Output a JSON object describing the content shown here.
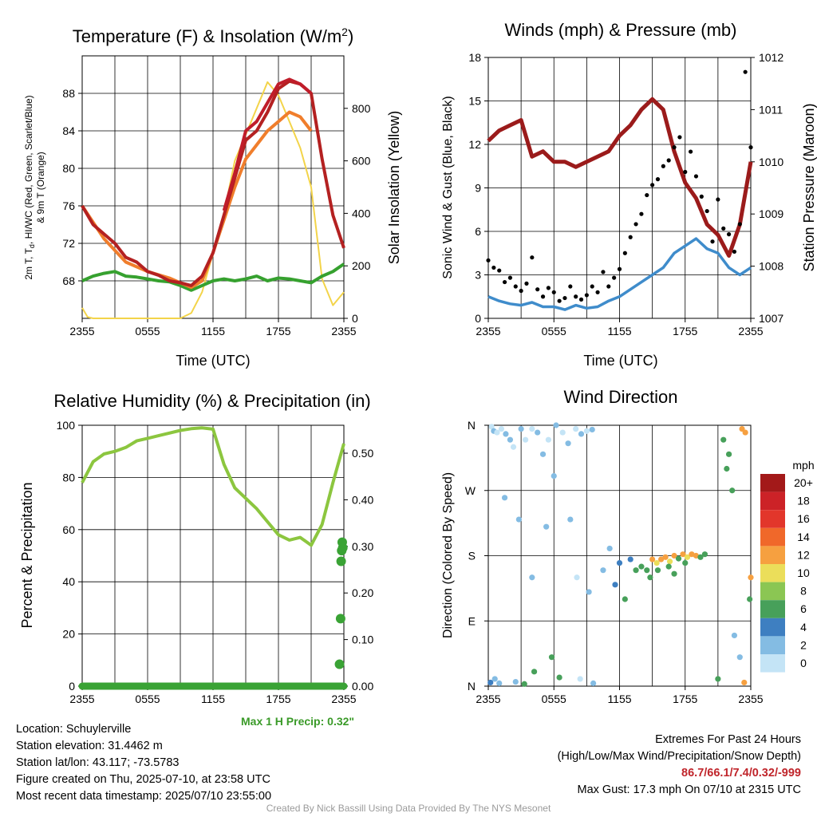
{
  "colors": {
    "temperature": "#b42121",
    "dewpoint": "#36a12f",
    "heat_index": "#c01d2a",
    "temp_9m": "#f07e2c",
    "insolation": "#f3d44a",
    "wind": "#3f8ccb",
    "gust": "#000000",
    "pressure": "#9b1b1b",
    "humidity": "#8cc63f",
    "precip": "#3aa335",
    "precip_label": "#3a9a28",
    "extremes": "#c0252b",
    "credit": "#9a9a9a"
  },
  "chart_data": [
    {
      "id": "temperature",
      "type": "line",
      "title": "Temperature (F) & Insolation (W/m",
      "title_superscript": "2",
      "title_close": ")",
      "xlabel": "Time (UTC)",
      "ylabel": "2m T, T",
      "ylabel_sub": "d",
      "ylabel_rest": ", HI/WC (Red, Green, Scarlet/Blue)",
      "ylabel2": "& 9m T (Orange)",
      "y2label": "Solar Insolation (Yellow)",
      "x_ticks": [
        "2355",
        "0555",
        "1155",
        "1755",
        "2355"
      ],
      "x_range": [
        0,
        24
      ],
      "ylim": [
        64,
        92
      ],
      "y_ticks": [
        68,
        72,
        76,
        80,
        84,
        88
      ],
      "y2lim": [
        0,
        1000
      ],
      "y2_ticks": [
        0,
        200,
        400,
        600,
        800
      ],
      "grid": true,
      "series": [
        {
          "key": "temperature",
          "x": [
            0,
            1,
            2,
            3,
            4,
            5,
            6,
            7,
            8,
            9,
            10,
            11,
            12,
            13,
            14,
            15,
            16,
            17,
            18,
            19,
            20,
            21,
            22,
            23,
            24
          ],
          "y": [
            76,
            74,
            73,
            72,
            70.5,
            70,
            69,
            68.6,
            68,
            67.8,
            67.5,
            68.5,
            71,
            75,
            79,
            83,
            84,
            86,
            88.5,
            89.3,
            89,
            88,
            81,
            75,
            71.5
          ]
        },
        {
          "key": "heat_index",
          "x": [
            13,
            14,
            15,
            16,
            17,
            18,
            19,
            20,
            21
          ],
          "y": [
            75.5,
            79.5,
            84,
            85,
            87,
            89,
            89.5,
            89,
            88
          ]
        },
        {
          "key": "temp_9m",
          "x": [
            0,
            2,
            4,
            6,
            8,
            9,
            10,
            11,
            12,
            13,
            14,
            15,
            16,
            17,
            18,
            19,
            20,
            21
          ],
          "y": [
            76,
            72.5,
            70,
            69,
            68.3,
            67.8,
            67.3,
            68,
            71,
            74.5,
            78,
            81,
            82.5,
            84,
            85,
            86,
            85.5,
            84
          ]
        },
        {
          "key": "dewpoint",
          "x": [
            0,
            1,
            2,
            3,
            4,
            5,
            6,
            7,
            8,
            9,
            10,
            11,
            12,
            13,
            14,
            15,
            16,
            17,
            18,
            19,
            20,
            21,
            22,
            23,
            24
          ],
          "y": [
            68,
            68.5,
            68.8,
            69,
            68.5,
            68.4,
            68.2,
            68,
            67.9,
            67.5,
            67,
            67.5,
            68,
            68.2,
            68,
            68.2,
            68.5,
            68,
            68.3,
            68.2,
            68,
            67.8,
            68.5,
            69,
            69.8
          ]
        },
        {
          "key": "insolation",
          "axis": "y2",
          "x": [
            0,
            0.5,
            1,
            2,
            3,
            4,
            5,
            6,
            7,
            8,
            9,
            10,
            11,
            12,
            13,
            14,
            15,
            16,
            17,
            18,
            19,
            20,
            21,
            22,
            23,
            24
          ],
          "y": [
            40,
            5,
            0,
            0,
            0,
            0,
            0,
            0,
            0,
            0,
            0,
            20,
            100,
            250,
            400,
            600,
            700,
            800,
            900,
            850,
            750,
            650,
            500,
            150,
            50,
            100
          ]
        }
      ]
    },
    {
      "id": "winds",
      "type": "line",
      "title": "Winds (mph) & Pressure (mb)",
      "xlabel": "Time (UTC)",
      "ylabel": "Sonic Wind & Gust (Blue, Black)",
      "y2label": "Station Pressure (Maroon)",
      "x_ticks": [
        "2355",
        "0555",
        "1155",
        "1755",
        "2355"
      ],
      "x_range": [
        0,
        24
      ],
      "ylim": [
        0,
        18
      ],
      "y_ticks": [
        0,
        3,
        6,
        9,
        12,
        15,
        18
      ],
      "y2lim": [
        1007,
        1012
      ],
      "y2_ticks": [
        1007,
        1008,
        1009,
        1010,
        1011,
        1012
      ],
      "grid": true,
      "series": [
        {
          "key": "pressure",
          "axis": "y2",
          "x": [
            0,
            1,
            2,
            3,
            4,
            5,
            6,
            7,
            8,
            9,
            10,
            11,
            12,
            13,
            14,
            15,
            16,
            17,
            18,
            19,
            20,
            21,
            22,
            23,
            24
          ],
          "y": [
            1010.4,
            1010.6,
            1010.7,
            1010.8,
            1010.1,
            1010.2,
            1010.0,
            1010.0,
            1009.9,
            1010.0,
            1010.1,
            1010.2,
            1010.5,
            1010.7,
            1011.0,
            1011.2,
            1011.0,
            1010.2,
            1009.6,
            1009.3,
            1008.8,
            1008.6,
            1008.2,
            1008.8,
            1010.0
          ]
        },
        {
          "key": "wind",
          "x": [
            0,
            1,
            2,
            3,
            4,
            5,
            6,
            7,
            8,
            9,
            10,
            11,
            12,
            13,
            14,
            15,
            16,
            17,
            18,
            19,
            20,
            21,
            22,
            23,
            24
          ],
          "y": [
            1.5,
            1.2,
            1,
            0.9,
            1.1,
            0.8,
            0.8,
            0.6,
            0.9,
            0.7,
            0.8,
            1.2,
            1.5,
            2.0,
            2.5,
            3.0,
            3.5,
            4.5,
            5.0,
            5.5,
            4.8,
            4.5,
            3.5,
            3.0,
            3.5
          ]
        },
        {
          "key": "gust",
          "mode": "markers",
          "x": [
            0,
            0.5,
            1,
            1.5,
            2,
            2.5,
            3,
            3.5,
            4,
            4.5,
            5,
            5.5,
            6,
            6.5,
            7,
            7.5,
            8,
            8.5,
            9,
            9.5,
            10,
            10.5,
            11,
            11.5,
            12,
            12.5,
            13,
            13.5,
            14,
            14.5,
            15,
            15.5,
            16,
            16.5,
            17,
            17.5,
            18,
            18.5,
            19,
            19.5,
            20,
            20.5,
            21,
            21.5,
            22,
            22.5,
            23,
            23.5,
            24
          ],
          "y": [
            4,
            3.5,
            3.3,
            2.5,
            2.8,
            2.2,
            1.9,
            2.4,
            4.2,
            2,
            1.5,
            2.1,
            1.8,
            1.2,
            1.4,
            2.2,
            1.5,
            1.3,
            1.6,
            2.2,
            1.8,
            3.2,
            2.2,
            2.8,
            3.4,
            4.5,
            5.6,
            6.5,
            7.2,
            8.5,
            9.2,
            9.6,
            10.5,
            10.9,
            11.8,
            12.5,
            10.1,
            11.5,
            9.8,
            8.4,
            7.4,
            5.3,
            8.2,
            6.2,
            5.8,
            4.6,
            6.5,
            17,
            11.8
          ]
        }
      ]
    },
    {
      "id": "humidity",
      "type": "line",
      "title": "Relative Humidity (%) & Precipitation (in)",
      "ylabel": "Percent & Precipitation",
      "x_ticks": [
        "2355",
        "0555",
        "1155",
        "1755",
        "2355"
      ],
      "x_range": [
        0,
        24
      ],
      "ylim": [
        0,
        100
      ],
      "y_ticks": [
        0,
        20,
        40,
        60,
        80,
        100
      ],
      "y2lim": [
        0,
        0.56
      ],
      "y2_ticks": [
        "0.00",
        "0.10",
        "0.20",
        "0.30",
        "0.40",
        "0.50"
      ],
      "grid": true,
      "series": [
        {
          "key": "humidity",
          "x": [
            0,
            0.5,
            1,
            2,
            3,
            4,
            5,
            6,
            7,
            8,
            9,
            10,
            11,
            12,
            13,
            14,
            15,
            16,
            17,
            18,
            19,
            20,
            21,
            22,
            23,
            24
          ],
          "y": [
            78,
            82,
            86,
            89,
            90,
            91.5,
            94,
            95,
            96,
            97,
            98,
            98.7,
            99,
            98.5,
            85,
            76,
            72,
            68,
            63,
            58,
            56,
            57,
            54,
            62,
            78,
            93
          ]
        },
        {
          "key": "precip",
          "axis": "y2",
          "mode": "markers",
          "x": [
            23.6,
            23.7,
            23.75,
            23.8,
            23.85,
            23.9
          ],
          "y": [
            0.047,
            0.145,
            0.268,
            0.291,
            0.309,
            0.297
          ],
          "baseline": 0
        }
      ]
    },
    {
      "id": "wind_direction",
      "type": "scatter",
      "title": "Wind Direction",
      "ylabel": "Direction (Colored By Speed)",
      "x_ticks": [
        "2355",
        "0555",
        "1155",
        "1755",
        "2355"
      ],
      "x_range": [
        0,
        24
      ],
      "y_ticks": [
        "N",
        "E",
        "S",
        "W",
        "N"
      ],
      "ylim": [
        0,
        360
      ],
      "legend_title": "mph",
      "legend_position": "right",
      "legend_labels": [
        "20+",
        "18",
        "16",
        "14",
        "12",
        "10",
        "8",
        "6",
        "4",
        "2",
        "0"
      ],
      "legend_colors": [
        "#a31919",
        "#cc2227",
        "#e2362b",
        "#f0682a",
        "#f6a040",
        "#ebde5a",
        "#8bc653",
        "#47a05a",
        "#3e7fc1",
        "#84bce3",
        "#c4e4f6"
      ],
      "points": [
        {
          "x": 0.3,
          "y": 358,
          "s": 0
        },
        {
          "x": 0.5,
          "y": 352,
          "s": 1
        },
        {
          "x": 0.8,
          "y": 350,
          "s": 0
        },
        {
          "x": 1.2,
          "y": 355,
          "s": 0
        },
        {
          "x": 1.6,
          "y": 348,
          "s": 1
        },
        {
          "x": 2.0,
          "y": 340,
          "s": 1
        },
        {
          "x": 2.3,
          "y": 330,
          "s": 0
        },
        {
          "x": 3.0,
          "y": 355,
          "s": 1
        },
        {
          "x": 3.4,
          "y": 340,
          "s": 0
        },
        {
          "x": 4.0,
          "y": 355,
          "s": 0
        },
        {
          "x": 4.5,
          "y": 350,
          "s": 1
        },
        {
          "x": 5.0,
          "y": 320,
          "s": 1
        },
        {
          "x": 5.5,
          "y": 340,
          "s": 0
        },
        {
          "x": 6.2,
          "y": 360,
          "s": 1
        },
        {
          "x": 6.8,
          "y": 350,
          "s": 0
        },
        {
          "x": 7.3,
          "y": 335,
          "s": 1
        },
        {
          "x": 8.0,
          "y": 355,
          "s": 0
        },
        {
          "x": 8.5,
          "y": 348,
          "s": 1
        },
        {
          "x": 9.0,
          "y": 352,
          "s": 0
        },
        {
          "x": 9.5,
          "y": 354,
          "s": 1
        },
        {
          "x": 0.2,
          "y": 5,
          "s": 2
        },
        {
          "x": 0.6,
          "y": 10,
          "s": 1
        },
        {
          "x": 1.0,
          "y": 4,
          "s": 1
        },
        {
          "x": 2.5,
          "y": 6,
          "s": 1
        },
        {
          "x": 3.3,
          "y": 3,
          "s": 3
        },
        {
          "x": 4.2,
          "y": 20,
          "s": 3
        },
        {
          "x": 5.8,
          "y": 40,
          "s": 3
        },
        {
          "x": 6.5,
          "y": 12,
          "s": 3
        },
        {
          "x": 8.4,
          "y": 10,
          "s": 0
        },
        {
          "x": 9.6,
          "y": 4,
          "s": 1
        },
        {
          "x": 1.5,
          "y": 260,
          "s": 1
        },
        {
          "x": 2.8,
          "y": 230,
          "s": 1
        },
        {
          "x": 4.0,
          "y": 150,
          "s": 1
        },
        {
          "x": 5.3,
          "y": 220,
          "s": 1
        },
        {
          "x": 6.0,
          "y": 290,
          "s": 1
        },
        {
          "x": 7.5,
          "y": 230,
          "s": 1
        },
        {
          "x": 8.1,
          "y": 150,
          "s": 0
        },
        {
          "x": 9.2,
          "y": 130,
          "s": 1
        },
        {
          "x": 10.5,
          "y": 160,
          "s": 1
        },
        {
          "x": 11.1,
          "y": 190,
          "s": 1
        },
        {
          "x": 11.6,
          "y": 140,
          "s": 2
        },
        {
          "x": 12.0,
          "y": 170,
          "s": 2
        },
        {
          "x": 12.5,
          "y": 120,
          "s": 3
        },
        {
          "x": 13.0,
          "y": 175,
          "s": 2
        },
        {
          "x": 13.5,
          "y": 160,
          "s": 3
        },
        {
          "x": 14.0,
          "y": 165,
          "s": 3
        },
        {
          "x": 14.5,
          "y": 160,
          "s": 3
        },
        {
          "x": 15.0,
          "y": 175,
          "s": 6
        },
        {
          "x": 15.4,
          "y": 170,
          "s": 5
        },
        {
          "x": 15.8,
          "y": 175,
          "s": 6
        },
        {
          "x": 16.2,
          "y": 178,
          "s": 6
        },
        {
          "x": 16.6,
          "y": 172,
          "s": 5
        },
        {
          "x": 17.0,
          "y": 180,
          "s": 6
        },
        {
          "x": 17.4,
          "y": 176,
          "s": 3
        },
        {
          "x": 17.8,
          "y": 182,
          "s": 6
        },
        {
          "x": 18.2,
          "y": 178,
          "s": 5
        },
        {
          "x": 18.6,
          "y": 182,
          "s": 6
        },
        {
          "x": 19.0,
          "y": 180,
          "s": 6
        },
        {
          "x": 19.4,
          "y": 178,
          "s": 3
        },
        {
          "x": 19.8,
          "y": 182,
          "s": 3
        },
        {
          "x": 14.8,
          "y": 150,
          "s": 3
        },
        {
          "x": 15.5,
          "y": 160,
          "s": 3
        },
        {
          "x": 16.5,
          "y": 165,
          "s": 3
        },
        {
          "x": 18.0,
          "y": 170,
          "s": 3
        },
        {
          "x": 17.0,
          "y": 155,
          "s": 3
        },
        {
          "x": 21.5,
          "y": 340,
          "s": 3
        },
        {
          "x": 22.0,
          "y": 320,
          "s": 3
        },
        {
          "x": 22.3,
          "y": 270,
          "s": 3
        },
        {
          "x": 21.8,
          "y": 300,
          "s": 3
        },
        {
          "x": 23.2,
          "y": 355,
          "s": 6
        },
        {
          "x": 23.5,
          "y": 350,
          "s": 6
        },
        {
          "x": 21.0,
          "y": 10,
          "s": 3
        },
        {
          "x": 22.5,
          "y": 70,
          "s": 1
        },
        {
          "x": 23.0,
          "y": 40,
          "s": 1
        },
        {
          "x": 23.4,
          "y": 5,
          "s": 6
        },
        {
          "x": 23.9,
          "y": 120,
          "s": 3
        },
        {
          "x": 24.0,
          "y": 150,
          "s": 6
        }
      ]
    }
  ],
  "precip_note": "Max 1 H Precip: 0.32\"",
  "info": {
    "location": "Location: Schuylerville",
    "elevation": "Station elevation: 31.4462 m",
    "latlon": "Station lat/lon: 43.117; -73.5783",
    "created": "Figure created on Thu, 2025-07-10, at 23:58 UTC",
    "recent": "Most recent data timestamp: 2025/07/10 23:55:00"
  },
  "extremes": {
    "title": "Extremes For Past 24 Hours",
    "subtitle": "(High/Low/Max Wind/Precipitation/Snow Depth)",
    "values": "86.7/66.1/7.4/0.32/-999",
    "max_gust": "Max Gust: 17.3 mph On 07/10 at 2315 UTC"
  },
  "credit": "Created By Nick Bassill Using Data Provided By The NYS Mesonet"
}
